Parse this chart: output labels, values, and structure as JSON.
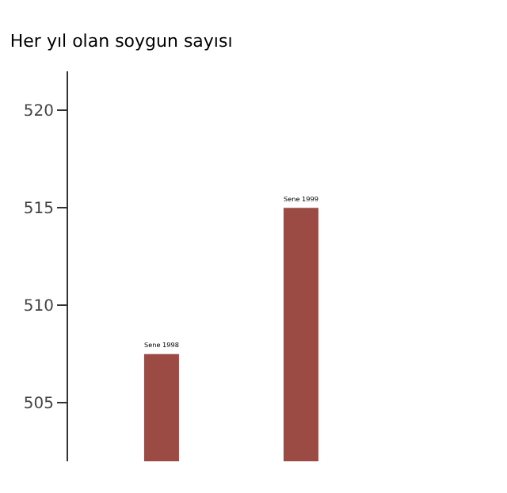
{
  "chart_data": {
    "type": "bar",
    "title": "Her yıl olan soygun sayısı",
    "categories": [
      "Sene 1998",
      "Sene 1999"
    ],
    "values": [
      507.5,
      515
    ],
    "color": "#9b4a44",
    "ylim": [
      502,
      522
    ],
    "yticks": [
      505,
      510,
      515,
      520
    ],
    "tick_labels": "y"
  }
}
